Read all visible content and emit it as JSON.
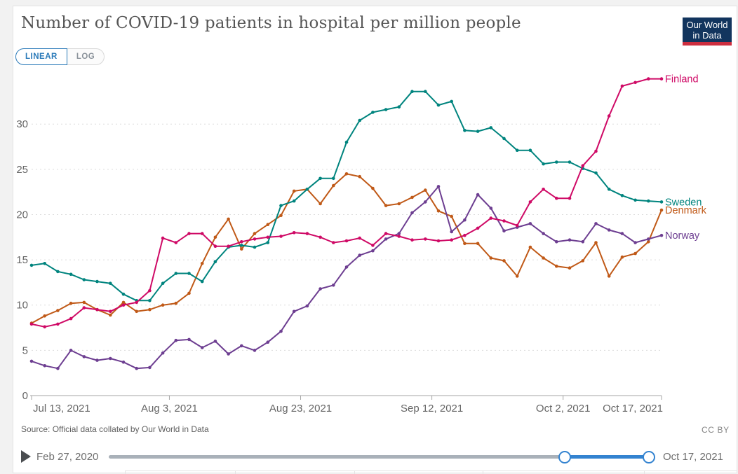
{
  "header": {
    "title": "Number of COVID-19 patients in hospital per million people",
    "scale_toggle": {
      "linear": "LINEAR",
      "log": "LOG",
      "active": "LINEAR",
      "accent": "#2a7ab9"
    }
  },
  "logo": {
    "line1": "Our World",
    "line2": "in Data",
    "bg_color": "#12355e",
    "bar_color": "#cd2e3f"
  },
  "chart_data": {
    "type": "line",
    "title": "Number of COVID-19 patients in hospital per million people",
    "xlabel": "",
    "ylabel": "",
    "ylim": [
      0,
      35.2
    ],
    "grid": "horizontal-dashed",
    "legend_position": "right-of-line-ends",
    "y_ticks": [
      0,
      5,
      10,
      15,
      20,
      25,
      30
    ],
    "x_ticks": [
      {
        "label": "Jul 13, 2021",
        "day": 0,
        "align": "start"
      },
      {
        "label": "Aug 3, 2021",
        "day": 21,
        "align": "middle"
      },
      {
        "label": "Aug 23, 2021",
        "day": 41,
        "align": "middle"
      },
      {
        "label": "Sep 12, 2021",
        "day": 61,
        "align": "middle"
      },
      {
        "label": "Oct 2, 2021",
        "day": 81,
        "align": "middle"
      },
      {
        "label": "Oct 17, 2021",
        "day": 96,
        "align": "end"
      }
    ],
    "x_days": [
      0,
      2,
      4,
      6,
      8,
      10,
      12,
      14,
      16,
      18,
      20,
      22,
      24,
      26,
      28,
      30,
      32,
      34,
      36,
      38,
      40,
      42,
      44,
      46,
      48,
      50,
      52,
      54,
      56,
      58,
      60,
      62,
      64,
      66,
      68,
      70,
      72,
      74,
      76,
      78,
      80,
      82,
      84,
      86,
      88,
      90,
      92,
      94,
      96
    ],
    "dates": [
      "2021-07-13",
      "2021-07-15",
      "2021-07-17",
      "2021-07-19",
      "2021-07-21",
      "2021-07-23",
      "2021-07-25",
      "2021-07-27",
      "2021-07-29",
      "2021-07-31",
      "2021-08-02",
      "2021-08-04",
      "2021-08-06",
      "2021-08-08",
      "2021-08-10",
      "2021-08-12",
      "2021-08-14",
      "2021-08-16",
      "2021-08-18",
      "2021-08-20",
      "2021-08-22",
      "2021-08-24",
      "2021-08-26",
      "2021-08-28",
      "2021-08-30",
      "2021-09-01",
      "2021-09-03",
      "2021-09-05",
      "2021-09-07",
      "2021-09-09",
      "2021-09-11",
      "2021-09-13",
      "2021-09-15",
      "2021-09-17",
      "2021-09-19",
      "2021-09-21",
      "2021-09-23",
      "2021-09-25",
      "2021-09-27",
      "2021-09-29",
      "2021-10-01",
      "2021-10-03",
      "2021-10-05",
      "2021-10-07",
      "2021-10-09",
      "2021-10-11",
      "2021-10-13",
      "2021-10-15",
      "2021-10-17"
    ],
    "series": [
      {
        "name": "Denmark",
        "color": "#c05917",
        "values": [
          8.0,
          8.8,
          9.4,
          10.2,
          10.3,
          9.5,
          8.9,
          10.3,
          9.3,
          9.5,
          10.0,
          10.2,
          11.3,
          14.6,
          17.5,
          19.5,
          16.2,
          17.9,
          18.9,
          19.9,
          22.6,
          22.8,
          21.2,
          23.2,
          24.5,
          24.2,
          22.9,
          21.0,
          21.2,
          21.9,
          22.7,
          20.4,
          19.8,
          16.8,
          16.8,
          15.2,
          14.9,
          13.2,
          16.4,
          15.2,
          14.3,
          14.1,
          14.9,
          16.9,
          13.2,
          15.3,
          15.7,
          17.0,
          20.5
        ]
      },
      {
        "name": "Norway",
        "color": "#6d3e91",
        "values": [
          3.8,
          3.3,
          3.0,
          5.0,
          4.3,
          3.9,
          4.1,
          3.7,
          3.0,
          3.1,
          4.7,
          6.1,
          6.2,
          5.3,
          6.0,
          4.6,
          5.5,
          5.0,
          5.9,
          7.1,
          9.3,
          9.9,
          11.8,
          12.2,
          14.2,
          15.5,
          16.0,
          17.3,
          17.9,
          20.2,
          21.4,
          23.1,
          18.1,
          19.4,
          22.2,
          20.7,
          18.2,
          18.6,
          19.0,
          17.9,
          17.0,
          17.2,
          17.0,
          19.0,
          18.3,
          17.9,
          16.9,
          17.3,
          17.7
        ]
      },
      {
        "name": "Sweden",
        "color": "#00847e",
        "values": [
          14.4,
          14.6,
          13.7,
          13.4,
          12.8,
          12.6,
          12.4,
          11.2,
          10.5,
          10.5,
          12.4,
          13.5,
          13.5,
          12.6,
          14.8,
          16.4,
          16.6,
          16.4,
          16.9,
          21.0,
          21.5,
          22.8,
          24.0,
          24.0,
          28.0,
          30.4,
          31.3,
          31.6,
          31.9,
          33.6,
          33.6,
          32.1,
          32.5,
          29.3,
          29.2,
          29.6,
          28.4,
          27.1,
          27.1,
          25.6,
          25.8,
          25.8,
          25.1,
          24.6,
          22.8,
          22.1,
          21.6,
          21.5,
          21.4
        ]
      },
      {
        "name": "Finland",
        "color": "#cf0a66",
        "values": [
          7.9,
          7.6,
          7.9,
          8.5,
          9.7,
          9.5,
          9.3,
          10.0,
          10.3,
          11.6,
          17.4,
          16.9,
          17.9,
          17.9,
          16.5,
          16.5,
          17.0,
          17.3,
          17.5,
          17.6,
          18.0,
          17.9,
          17.5,
          16.9,
          17.1,
          17.4,
          16.6,
          17.9,
          17.6,
          17.2,
          17.3,
          17.1,
          17.2,
          17.7,
          18.5,
          19.6,
          19.3,
          18.8,
          21.4,
          22.8,
          21.8,
          21.8,
          25.4,
          27.0,
          30.9,
          34.2,
          34.6,
          35.0,
          35.0
        ]
      }
    ]
  },
  "footer": {
    "source": "Source: Official data collated by Our World in Data",
    "license": "CC BY"
  },
  "timeline": {
    "start_label": "Feb 27, 2020",
    "end_label": "Oct 17, 2021",
    "selected_range_color": "#3383d0"
  }
}
